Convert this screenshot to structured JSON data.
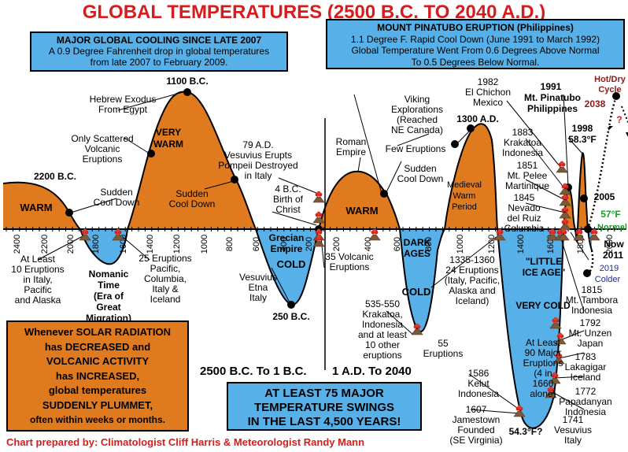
{
  "title": "GLOBAL TEMPERATURES (2500 B.C. TO 2040 A.D.)",
  "credit": "Chart prepared by: Climatologist Cliff Harris & Meteorologist Randy Mann",
  "cooling_box": {
    "heading": "MAJOR GLOBAL COOLING SINCE LATE 2007",
    "line1": "A 0.9 Degree Fahrenheit drop in global temperatures",
    "line2": "from late 2007 to February 2009."
  },
  "pinatubo_box": {
    "heading": "MOUNT PINATUBO ERUPTION (Philippines)",
    "line1": "1.1 Degree F. Rapid Cool Down (June 1991 to March 1992)",
    "line2": "Global Temperature Went From 0.6 Degrees Above Normal",
    "line3": "To 0.5 Degrees Below Normal."
  },
  "solar_box": {
    "line1": "Whenever SOLAR RADIATION",
    "line2": "has DECREASED and",
    "line3": "VOLCANIC ACTIVITY",
    "line4": "has INCREASED,",
    "line5": "global temperatures",
    "line6": "SUDDENLY PLUMMET,",
    "line7": "often within weeks or months."
  },
  "swings_box": {
    "line1": "AT LEAST 75 MAJOR",
    "line2": "TEMPERATURE SWINGS",
    "line3": "IN THE LAST 4,500 YEARS!"
  },
  "era_left": "2500 B.C. To 1 B.C.",
  "era_right": "1 A.D. To 2040",
  "colors": {
    "warm": "#e07a1f",
    "cold": "#58b0e8",
    "title": "#d61c1c",
    "normal": "#1a9a2a",
    "box_blue": "#58b0e8",
    "box_orange": "#e07a1f",
    "hot_dry": "#8b1a1a",
    "colder": "#1a2a9a"
  },
  "chart_data": {
    "type": "line",
    "x_axis": {
      "bc_ticks": [
        "2400",
        "2200",
        "2000",
        "1800",
        "1600",
        "1400",
        "1200",
        "1000",
        "800",
        "600",
        "400",
        "200"
      ],
      "ad_ticks": [
        "200",
        "400",
        "600",
        "800",
        "1000",
        "1200",
        "1400",
        "1600",
        "1800",
        "2000"
      ]
    },
    "zones": [
      {
        "label": "WARM",
        "kind": "warm"
      },
      {
        "label": "VERY WARM",
        "kind": "warm"
      },
      {
        "label": "COLD",
        "kind": "cold"
      },
      {
        "label": "WARM",
        "kind": "warm"
      },
      {
        "label": "COLD",
        "kind": "cold"
      },
      {
        "label": "Medieval Warm Period",
        "kind": "warm"
      },
      {
        "label": "VERY COLD",
        "kind": "cold"
      }
    ],
    "annotations": [
      {
        "id": "a2200",
        "text": "2200 B.C.",
        "bold": true
      },
      {
        "id": "a1100",
        "text": "1100 B.C.",
        "bold": true
      },
      {
        "id": "a250",
        "text": "250 B.C.",
        "bold": true
      },
      {
        "id": "a1300",
        "text": "1300 A.D.",
        "bold": true
      },
      {
        "id": "a1998",
        "text": "1998",
        "bold": true
      },
      {
        "id": "a583",
        "text": "58.3°F",
        "bold": true
      },
      {
        "id": "a1991",
        "text": "1991",
        "bold": true
      },
      {
        "id": "apin",
        "text": "Mt. Pinatubo",
        "bold": true
      },
      {
        "id": "aphil",
        "text": "Philippines",
        "bold": true
      },
      {
        "id": "a2005",
        "text": "2005",
        "bold": true
      },
      {
        "id": "a57",
        "text": "57°F",
        "bold": true
      },
      {
        "id": "anormal",
        "text": "Normal",
        "bold": true
      },
      {
        "id": "anow",
        "text": "Now",
        "bold": true
      },
      {
        "id": "a2011",
        "text": "2011",
        "bold": true
      },
      {
        "id": "a2019",
        "text": "2019",
        "bold": false
      },
      {
        "id": "acolder",
        "text": "Colder",
        "bold": false
      },
      {
        "id": "a543",
        "text": "54.3°F?",
        "bold": true
      },
      {
        "id": "ahot",
        "text": "Hot/Dry",
        "bold": true
      },
      {
        "id": "acycle",
        "text": "Cycle",
        "bold": true
      },
      {
        "id": "a2038",
        "text": "2038",
        "bold": true
      },
      {
        "id": "aq",
        "text": "?",
        "bold": true
      }
    ],
    "notes": [
      {
        "id": "n_sudden1",
        "lines": [
          "Sudden",
          "Cool Down"
        ]
      },
      {
        "id": "n_atleast10",
        "lines": [
          "At Least",
          "10 Eruptions",
          "in Italy,",
          "Pacific",
          "and Alaska"
        ]
      },
      {
        "id": "n_nomanic",
        "lines": [
          "Nomanic",
          "Time",
          "(Era of",
          "Great",
          "Migration)"
        ]
      },
      {
        "id": "n_25",
        "lines": [
          "25 Eruptions",
          "Pacific,",
          "Columbia,",
          "Italy &",
          "Iceland"
        ]
      },
      {
        "id": "n_hebrew",
        "lines": [
          "Hebrew Exodus",
          "From Egypt"
        ]
      },
      {
        "id": "n_scattered",
        "lines": [
          "Only Scattered",
          "Volcanic",
          "Eruptions"
        ]
      },
      {
        "id": "n_sudden2",
        "lines": [
          "Sudden",
          "Cool Down"
        ]
      },
      {
        "id": "n_vesuvius79",
        "lines": [
          "79 A.D.",
          "Vesuvius Erupts",
          "Pompeii Destroyed",
          "in Italy"
        ]
      },
      {
        "id": "n_4bc",
        "lines": [
          "4 B.C.",
          "Birth of",
          "Christ"
        ]
      },
      {
        "id": "n_grecian",
        "lines": [
          "Grecian",
          "Empire"
        ]
      },
      {
        "id": "n_etna",
        "lines": [
          "Vesuvius",
          "Etna",
          "Italy"
        ]
      },
      {
        "id": "n_35",
        "lines": [
          "35 Volcanic",
          "Eruptions"
        ]
      },
      {
        "id": "n_roman",
        "lines": [
          "Roman",
          "Empire"
        ]
      },
      {
        "id": "n_viking",
        "lines": [
          "Viking",
          "Explorations",
          "(Reached",
          "NE Canada)"
        ]
      },
      {
        "id": "n_few",
        "lines": [
          "Few Eruptions"
        ]
      },
      {
        "id": "n_sudden3",
        "lines": [
          "Sudden",
          "Cool Down"
        ]
      },
      {
        "id": "n_dark",
        "lines": [
          "DARK",
          "AGES"
        ]
      },
      {
        "id": "n_535",
        "lines": [
          "535-550",
          "Krakatoa,",
          "Indonesia",
          "and at least",
          "10 other",
          "eruptions"
        ]
      },
      {
        "id": "n_55",
        "lines": [
          "55",
          "Eruptions"
        ]
      },
      {
        "id": "n_1335",
        "lines": [
          "1335-1360",
          "24 Eruptions",
          "(Italy, Pacific,",
          "Alaska and",
          "Iceland)"
        ]
      },
      {
        "id": "n_lia",
        "lines": [
          "\"LITTLE",
          "ICE AGE\""
        ]
      },
      {
        "id": "n_90",
        "lines": [
          "At Least",
          "90 Major",
          "Eruptions",
          "(4 in",
          "1660",
          "alone)"
        ]
      },
      {
        "id": "n_1586",
        "lines": [
          "1586",
          "Kelut",
          "Indonesia"
        ]
      },
      {
        "id": "n_1607",
        "lines": [
          "1607",
          "Jamestown",
          "Founded",
          "(SE Virginia)"
        ]
      },
      {
        "id": "n_1982",
        "lines": [
          "1982",
          "El Chichon",
          "Mexico"
        ]
      },
      {
        "id": "n_1883",
        "lines": [
          "1883",
          "Krakatoa",
          "Indonesia"
        ]
      },
      {
        "id": "n_1851",
        "lines": [
          "1851",
          "Mt. Pelee",
          "Martinique"
        ]
      },
      {
        "id": "n_1845",
        "lines": [
          "1845",
          "Nevado",
          "del Ruiz",
          "Columbia"
        ]
      },
      {
        "id": "n_1815",
        "lines": [
          "1815",
          "Mt. Tambora",
          "Indonesia"
        ]
      },
      {
        "id": "n_1792",
        "lines": [
          "1792",
          "Mt. Unzen",
          "Japan"
        ]
      },
      {
        "id": "n_1783",
        "lines": [
          "1783",
          "Lakagigar",
          "Iceland"
        ]
      },
      {
        "id": "n_1772",
        "lines": [
          "1772",
          "Papadanyan",
          "Indonesia"
        ]
      },
      {
        "id": "n_1741",
        "lines": [
          "1741",
          "Vesuvius",
          "Italy"
        ]
      }
    ]
  }
}
